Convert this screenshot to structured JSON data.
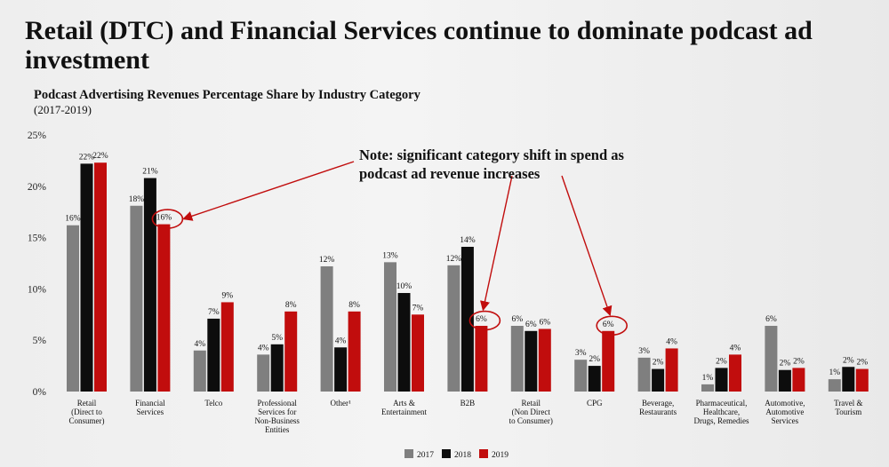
{
  "title": "Retail (DTC) and Financial Services continue to dominate podcast ad investment",
  "colors": {
    "2017": "#7f7f7f",
    "2018": "#0d0d0d",
    "2019": "#c10d0d",
    "highlight": "#c10d0d"
  },
  "chart_data": {
    "type": "bar",
    "title": "Podcast Advertising Revenues Percentage Share by Industry Category",
    "subtitle": "(2017-2019)",
    "ylim": [
      0,
      25
    ],
    "yticks": [
      "0%",
      "5%",
      "10%",
      "15%",
      "20%",
      "25%"
    ],
    "grid": false,
    "legend_position": "bottom-center",
    "categories": [
      "Retail (Direct to Consumer)",
      "Financial Services",
      "Telco",
      "Professional Services for Non-Business Entities",
      "Other¹",
      "Arts & Entertainment",
      "B2B",
      "Retail (Non Direct to Consumer)",
      "CPG",
      "Beverage, Restaurants",
      "Pharmaceutical, Healthcare, Drugs, Remedies",
      "Automotive, Automotive Services",
      "Travel & Tourism"
    ],
    "category_lines": [
      [
        "Retail",
        "(Direct to",
        "Consumer)"
      ],
      [
        "Financial",
        "Services"
      ],
      [
        "Telco"
      ],
      [
        "Professional",
        "Services for",
        "Non-Business",
        "Entities"
      ],
      [
        "Other¹"
      ],
      [
        "Arts &",
        "Entertainment"
      ],
      [
        "B2B"
      ],
      [
        "Retail",
        "(Non Direct",
        "to Consumer)"
      ],
      [
        "CPG"
      ],
      [
        "Beverage,",
        "Restaurants"
      ],
      [
        "Pharmaceutical,",
        "Healthcare,",
        "Drugs, Remedies"
      ],
      [
        "Automotive,",
        "Automotive",
        "Services"
      ],
      [
        "Travel &",
        "Tourism"
      ]
    ],
    "series": [
      {
        "name": "2017",
        "values": [
          16.2,
          18.1,
          4.0,
          3.6,
          12.2,
          12.6,
          12.3,
          6.4,
          3.1,
          3.3,
          0.7,
          6.4,
          1.2
        ],
        "labels": [
          "16%",
          "18%",
          "4%",
          "4%",
          "12%",
          "13%",
          "12%",
          "6%",
          "3%",
          "3%",
          "1%",
          "6%",
          "1%"
        ]
      },
      {
        "name": "2018",
        "values": [
          22.2,
          20.8,
          7.1,
          4.6,
          4.3,
          9.6,
          14.1,
          5.9,
          2.5,
          2.2,
          2.3,
          2.1,
          2.4
        ],
        "labels": [
          "22%",
          "21%",
          "7%",
          "5%",
          "4%",
          "10%",
          "14%",
          "6%",
          "2%",
          "2%",
          "2%",
          "2%",
          "2%"
        ]
      },
      {
        "name": "2019",
        "values": [
          22.3,
          16.3,
          8.7,
          7.8,
          7.8,
          7.5,
          6.4,
          6.1,
          5.9,
          4.2,
          3.6,
          2.3,
          2.2
        ],
        "labels": [
          "22%",
          "16%",
          "9%",
          "8%",
          "8%",
          "7%",
          "6%",
          "6%",
          "6%",
          "4%",
          "4%",
          "2%",
          "2%"
        ]
      }
    ],
    "highlighted": [
      {
        "category_index": 1,
        "series": "2019"
      },
      {
        "category_index": 6,
        "series": "2019"
      },
      {
        "category_index": 8,
        "series": "2019"
      }
    ],
    "annotation": {
      "lines": [
        "Note: significant category shift in spend as",
        "podcast ad revenue increases"
      ]
    }
  }
}
